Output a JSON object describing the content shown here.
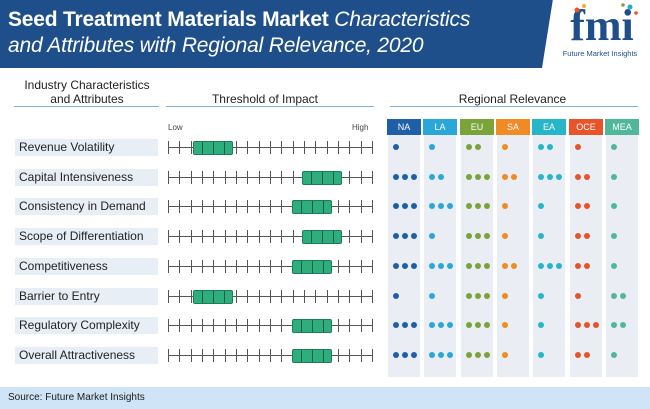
{
  "header": {
    "title_bold": "Seed Treatment Materials Market",
    "title_italic_1": "Characteristics",
    "title_line2": "and Attributes with Regional Relevance, 2020"
  },
  "logo": {
    "text": "Future Market Insights",
    "mark": "fmi"
  },
  "columns": {
    "characteristics": "Industry Characteristics\nand Attributes",
    "threshold": "Threshold of Impact",
    "regional": "Regional Relevance"
  },
  "scale": {
    "low": "Low",
    "high": "High",
    "ticks": 19
  },
  "regions": [
    {
      "code": "NA",
      "color": "#1f5fa8"
    },
    {
      "code": "LA",
      "color": "#2aa7d8"
    },
    {
      "code": "EU",
      "color": "#7aa33a"
    },
    {
      "code": "SA",
      "color": "#f08a24"
    },
    {
      "code": "EA",
      "color": "#26b6c8"
    },
    {
      "code": "OCE",
      "color": "#e8532a"
    },
    {
      "code": "MEA",
      "color": "#4fb89a"
    }
  ],
  "rows": [
    {
      "label": "Revenue Volatility",
      "impact": 0.22,
      "dots": [
        1,
        1,
        2,
        1,
        2,
        1,
        1
      ]
    },
    {
      "label": "Capital Intensiveness",
      "impact": 0.75,
      "dots": [
        3,
        2,
        3,
        2,
        3,
        2,
        1
      ]
    },
    {
      "label": "Consistency in Demand",
      "impact": 0.7,
      "dots": [
        3,
        3,
        3,
        1,
        1,
        2,
        1
      ]
    },
    {
      "label": "Scope of Differentiation",
      "impact": 0.75,
      "dots": [
        3,
        1,
        3,
        1,
        1,
        2,
        1
      ]
    },
    {
      "label": "Competitiveness",
      "impact": 0.7,
      "dots": [
        3,
        3,
        3,
        2,
        3,
        2,
        1
      ]
    },
    {
      "label": "Barrier to Entry",
      "impact": 0.22,
      "dots": [
        1,
        1,
        3,
        1,
        1,
        1,
        2
      ]
    },
    {
      "label": "Regulatory Complexity",
      "impact": 0.7,
      "dots": [
        3,
        3,
        3,
        1,
        1,
        3,
        2
      ]
    },
    {
      "label": "Overall Attractiveness",
      "impact": 0.7,
      "dots": [
        3,
        3,
        3,
        1,
        1,
        2,
        1
      ]
    }
  ],
  "footer": {
    "source": "Source: Future Market Insights"
  }
}
